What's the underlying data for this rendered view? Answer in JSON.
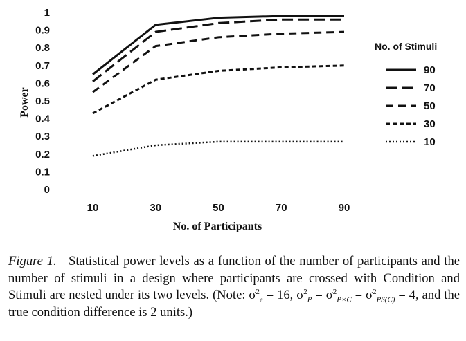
{
  "chart_data": {
    "type": "line",
    "title": "",
    "xlabel": "No. of Participants",
    "ylabel": "Power",
    "categories": [
      "10",
      "30",
      "50",
      "70",
      "90"
    ],
    "yticks": [
      "0",
      "0.1",
      "0.2",
      "0.3",
      "0.4",
      "0.5",
      "0.6",
      "0.7",
      "0.8",
      "0.9",
      "1"
    ],
    "ylim": [
      0,
      1
    ],
    "grid": false,
    "legend_title": "No. of Stimuli",
    "legend_position": "right",
    "series": [
      {
        "name": "90",
        "values": [
          0.65,
          0.93,
          0.97,
          0.98,
          0.98
        ],
        "dash": "none",
        "width": 3
      },
      {
        "name": "70",
        "values": [
          0.61,
          0.89,
          0.94,
          0.96,
          0.96
        ],
        "dash": "16 7",
        "width": 3
      },
      {
        "name": "50",
        "values": [
          0.55,
          0.81,
          0.86,
          0.88,
          0.89
        ],
        "dash": "11 7",
        "width": 3
      },
      {
        "name": "30",
        "values": [
          0.43,
          0.62,
          0.67,
          0.69,
          0.7
        ],
        "dash": "6 4",
        "width": 3
      },
      {
        "name": "10",
        "values": [
          0.19,
          0.25,
          0.27,
          0.27,
          0.27
        ],
        "dash": "2 3",
        "width": 2.5
      }
    ]
  },
  "caption": {
    "label": "Figure 1.",
    "text": "Statistical power levels as a function of the number of participants and the number of stimuli in a design where participants are crossed with Condition and Stimuli are nested under its two levels. (Note: ",
    "formula_1": "σ",
    "formula_1_sub": "e",
    "formula_1_sup": "2",
    "formula_1_rest": " = 16,",
    "formula_2_a": "σ",
    "formula_2_a_sub": "P",
    "formula_2_b": " = σ",
    "formula_2_b_sub": "P×C",
    "formula_2_c": " = σ",
    "formula_2_c_sub": "PS(C)",
    "formula_2_rest": " = 4, and the true condition difference is 2 units.)",
    "sup": "2"
  }
}
